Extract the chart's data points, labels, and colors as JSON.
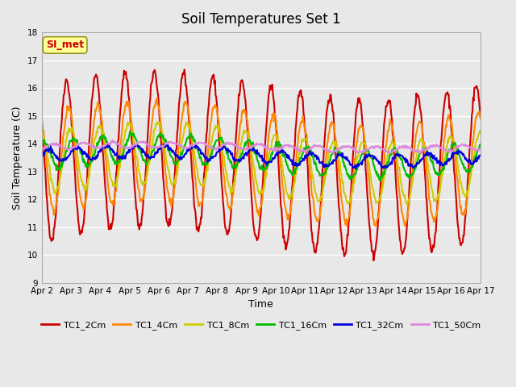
{
  "title": "Soil Temperatures Set 1",
  "xlabel": "Time",
  "ylabel": "Soil Temperature (C)",
  "ylim": [
    9.0,
    18.0
  ],
  "yticks": [
    9.0,
    10.0,
    11.0,
    12.0,
    13.0,
    14.0,
    15.0,
    16.0,
    17.0,
    18.0
  ],
  "xtick_labels": [
    "Apr 2",
    "Apr 3",
    "Apr 4",
    "Apr 5",
    "Apr 6",
    "Apr 7",
    "Apr 8",
    "Apr 9",
    "Apr 10",
    "Apr 11",
    "Apr 12",
    "Apr 13",
    "Apr 14",
    "Apr 15",
    "Apr 16",
    "Apr 17"
  ],
  "legend_labels": [
    "TC1_2Cm",
    "TC1_4Cm",
    "TC1_8Cm",
    "TC1_16Cm",
    "TC1_32Cm",
    "TC1_50Cm"
  ],
  "line_colors": [
    "#cc0000",
    "#ff8800",
    "#cccc00",
    "#00bb00",
    "#0000dd",
    "#dd88dd"
  ],
  "line_widths": [
    1.5,
    1.5,
    1.5,
    1.5,
    1.5,
    1.5
  ],
  "bg_color": "#e8e8e8",
  "plot_bg_color": "#e8e8e8",
  "annotation_text": "SI_met",
  "annotation_color": "#cc0000",
  "annotation_bg": "#ffff99",
  "grid_color": "#ffffff",
  "n_days": 15,
  "pts_per_day": 48
}
